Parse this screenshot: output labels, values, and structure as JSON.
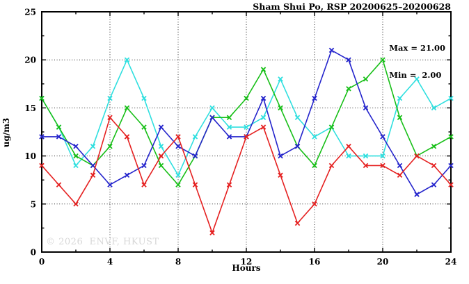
{
  "title": "Sham Shui Po, RSP 20200625–20200628",
  "annotation": {
    "max_label": "Max = 21.00",
    "min_label": "Min =  2.00"
  },
  "watermark": "© 2026  ENVF, HKUST",
  "chart_data": {
    "type": "line",
    "title": "Sham Shui Po, RSP 20200625–20200628",
    "xlabel": "Hours",
    "ylabel": "ug/m3",
    "xlim": [
      0,
      24
    ],
    "ylim": [
      0,
      25
    ],
    "x_major_ticks": [
      0,
      4,
      8,
      12,
      16,
      20,
      24
    ],
    "x_minor_step": 2,
    "y_major_ticks": [
      0,
      5,
      10,
      15,
      20,
      25
    ],
    "y_minor_step": 2.5,
    "grid": true,
    "marker": "cross",
    "x": [
      0,
      1,
      2,
      3,
      4,
      5,
      6,
      7,
      8,
      9,
      10,
      11,
      12,
      13,
      14,
      15,
      16,
      17,
      18,
      19,
      20,
      21,
      22,
      23,
      24
    ],
    "series": [
      {
        "name": "series-cyan",
        "color": "#2fdfdf",
        "values": [
          16,
          13,
          9,
          11,
          16,
          20,
          16,
          11,
          8,
          12,
          15,
          13,
          13,
          14,
          18,
          14,
          12,
          13,
          10,
          10,
          10,
          16,
          18,
          15,
          16
        ]
      },
      {
        "name": "series-green",
        "color": "#17bf17",
        "values": [
          16,
          13,
          10,
          9,
          11,
          15,
          13,
          9,
          7,
          10,
          14,
          14,
          16,
          19,
          15,
          11,
          9,
          13,
          17,
          18,
          20,
          14,
          10,
          11,
          12
        ]
      },
      {
        "name": "series-blue",
        "color": "#2424cc",
        "values": [
          12,
          12,
          11,
          9,
          7,
          8,
          9,
          13,
          11,
          10,
          14,
          12,
          12,
          16,
          10,
          11,
          16,
          21,
          20,
          15,
          12,
          9,
          6,
          7,
          9
        ]
      },
      {
        "name": "series-red",
        "color": "#e52020",
        "values": [
          9,
          7,
          5,
          8,
          14,
          12,
          7,
          10,
          12,
          7,
          2,
          7,
          12,
          13,
          8,
          3,
          5,
          9,
          11,
          9,
          9,
          8,
          10,
          9,
          7
        ]
      }
    ],
    "stats": {
      "max": 21.0,
      "min": 2.0
    }
  }
}
